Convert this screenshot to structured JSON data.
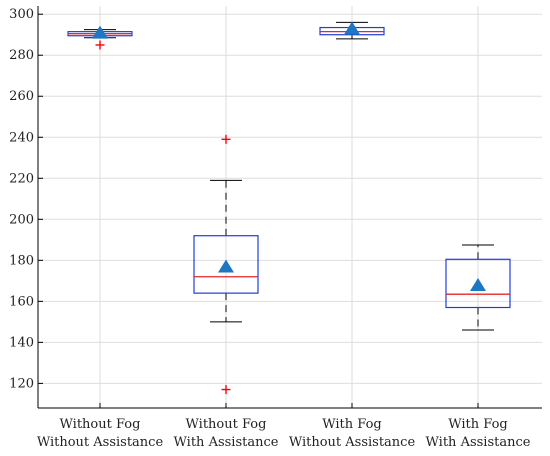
{
  "chart_data": {
    "type": "box",
    "title": "",
    "xlabel": "",
    "ylabel": "",
    "ylim": [
      108,
      304
    ],
    "yticks": [
      120,
      140,
      160,
      180,
      200,
      220,
      240,
      260,
      280,
      300
    ],
    "grid": true,
    "categories": [
      {
        "line1": "Without Fog",
        "line2": "Without Assistance"
      },
      {
        "line1": "Without Fog",
        "line2": "With Assistance"
      },
      {
        "line1": "With Fog",
        "line2": "Without Assistance"
      },
      {
        "line1": "With Fog",
        "line2": "With Assistance"
      }
    ],
    "boxes": [
      {
        "q1": 289.5,
        "median": 290.5,
        "q3": 291.5,
        "whisker_low": 288.5,
        "whisker_high": 292.5,
        "mean": 291,
        "outliers": [
          285
        ]
      },
      {
        "q1": 164,
        "median": 172,
        "q3": 192,
        "whisker_low": 150,
        "whisker_high": 219,
        "mean": 177,
        "outliers": [
          239,
          117
        ]
      },
      {
        "q1": 290,
        "median": 291.5,
        "q3": 293.5,
        "whisker_low": 288,
        "whisker_high": 296,
        "mean": 293,
        "outliers": []
      },
      {
        "q1": 157,
        "median": 163.5,
        "q3": 180.5,
        "whisker_low": 146,
        "whisker_high": 187.5,
        "mean": 168,
        "outliers": []
      }
    ],
    "colors": {
      "box": "#1f3fd8",
      "median": "#e8252a",
      "whisker": "#000000",
      "outlier": "#ff0000",
      "mean_marker": "#1f77c4",
      "grid": "#dedede"
    }
  }
}
